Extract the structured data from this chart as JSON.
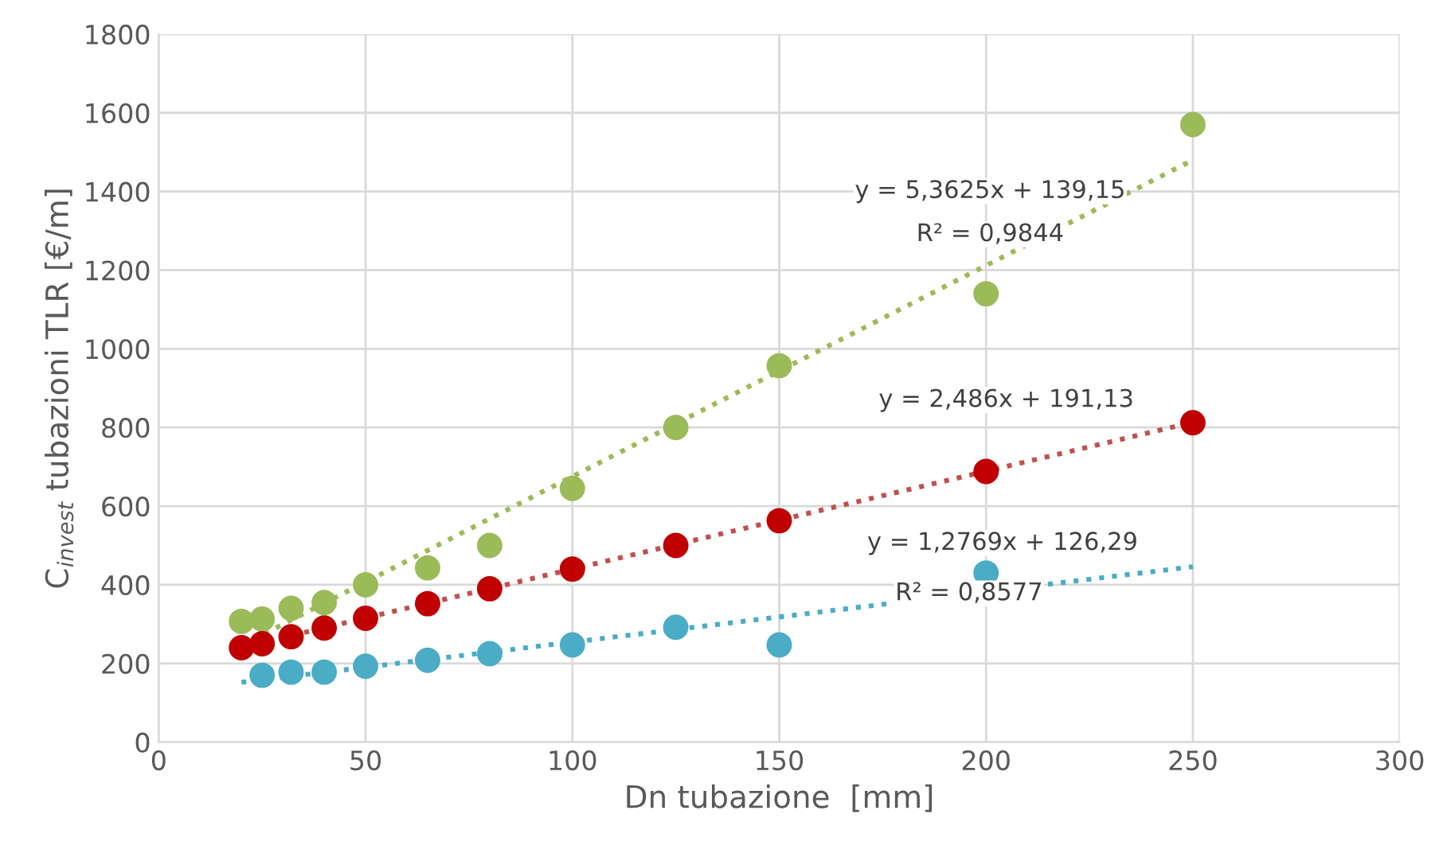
{
  "chart_data": {
    "type": "scatter",
    "xlabel": "Dn tubazione  [mm]",
    "ylabel": "C$_{invest}$ tubazioni TLR [€/m]",
    "xlim": [
      0,
      300
    ],
    "xticks": [
      0,
      50,
      100,
      150,
      200,
      250,
      300
    ],
    "ylim": [
      0,
      1800
    ],
    "yticks": [
      0,
      200,
      400,
      600,
      800,
      1000,
      1200,
      1400,
      1600,
      1800
    ],
    "grid": true,
    "marker": "circle",
    "series": [
      {
        "type": "line",
        "marker": "none",
        "line_style": "dotted",
        "color": "#9bbb59",
        "x": [
          20,
          250
        ],
        "values": [
          246,
          1480
        ]
      },
      {
        "type": "line",
        "marker": "none",
        "line_style": "dotted",
        "color": "#c0504d",
        "x": [
          20,
          250
        ],
        "values": [
          241,
          813
        ]
      },
      {
        "type": "line",
        "marker": "none",
        "line_style": "dotted",
        "color": "#4bacc6",
        "x": [
          20,
          250
        ],
        "values": [
          152,
          446
        ]
      },
      {
        "color": "#9bbb59",
        "x": [
          20,
          25,
          32,
          40,
          50,
          65,
          80,
          100,
          125,
          150,
          200,
          250
        ],
        "values": [
          307,
          313,
          340,
          355,
          400,
          443,
          500,
          645,
          800,
          957,
          1140,
          1570
        ]
      },
      {
        "color": "#c00000",
        "x": [
          20,
          25,
          32,
          40,
          50,
          65,
          80,
          100,
          125,
          150,
          200,
          250
        ],
        "values": [
          240,
          250,
          268,
          290,
          315,
          352,
          390,
          440,
          500,
          563,
          688,
          812
        ]
      },
      {
        "color": "#4bacc6",
        "x": [
          25,
          32,
          40,
          50,
          65,
          80,
          100,
          125,
          150,
          200
        ],
        "values": [
          170,
          178,
          178,
          193,
          208,
          225,
          247,
          292,
          247,
          430
        ]
      }
    ],
    "annotations": [
      "y = 5,3625x + 139,15",
      "R² = 0,9844",
      "y = 2,486x + 191,13",
      "y = 1,2769x + 126,29",
      "R² = 0,8577"
    ]
  }
}
